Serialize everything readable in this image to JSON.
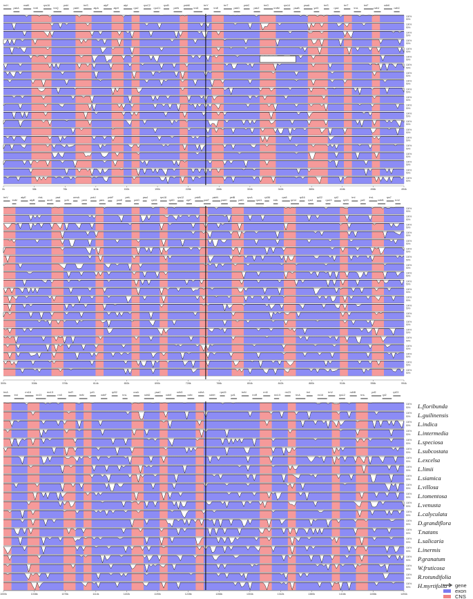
{
  "chart_data": {
    "type": "area",
    "description_free": true,
    "ylim": [
      50,
      100
    ],
    "y_ticks": [
      "100%",
      "50%"
    ],
    "legend": {
      "placement": "bottom-right",
      "items": [
        {
          "label": "gene",
          "color": "#555555",
          "kind": "arrow"
        },
        {
          "label": "exon",
          "color": "#7b7bf0",
          "kind": "swatch"
        },
        {
          "label": "CNS",
          "color": "#f08484",
          "kind": "swatch"
        }
      ]
    },
    "colors": {
      "exon": "#8c8cf5",
      "cns": "#f59a9a",
      "trace": "#111111",
      "fill": "#ffffff",
      "gene_bar": "#8a8a8a"
    },
    "species": [
      "L.floribunda",
      "L.guilinensis",
      "L.indica",
      "L.intermedia",
      "L.speciosa",
      "L.subcostata",
      "L.excelsa",
      "L.limii",
      "L.siamica",
      "L.villosa",
      "L.tomentosa",
      "L.venusta",
      "L.calyculata",
      "D.grandiflora",
      "T.natans",
      "L.salicaria",
      "L.inermis",
      "P.granatum",
      "W.fruticosa",
      "R.rotundifolia",
      "H.myrtifolia"
    ],
    "panels": [
      {
        "x_ticks": [
          "0k",
          "38k",
          "76k",
          "114k",
          "152k",
          "190k",
          "228k",
          "266k",
          "304k",
          "342k",
          "380k",
          "418k",
          "456k",
          "494k"
        ],
        "genes": [
          "trnH",
          "psbA",
          "matK",
          "trnK",
          "rps16",
          "trnQ",
          "psbI",
          "psbK",
          "trnS",
          "atpA",
          "atpF",
          "atpH",
          "atpI",
          "rps2",
          "rpoC2",
          "rpoC1",
          "rpoB",
          "petN",
          "psbM",
          "trnD",
          "trnY",
          "trnE",
          "trnT",
          "psbD",
          "psbC",
          "psbZ",
          "trnG",
          "trnfM",
          "rps14",
          "psaB",
          "psaA",
          "ycf3",
          "trnS",
          "rps4",
          "trnT",
          "trnL",
          "trnF",
          "ndhJ",
          "ndhK",
          "ndhC"
        ],
        "gaps": [
          {
            "track": 5,
            "from": 0.64,
            "to": 0.73
          }
        ],
        "regions": [
          {
            "t": "e",
            "s": 0.0,
            "w": 0.07
          },
          {
            "t": "c",
            "s": 0.07,
            "w": 0.05
          },
          {
            "t": "e",
            "s": 0.12,
            "w": 0.06
          },
          {
            "t": "c",
            "s": 0.18,
            "w": 0.04
          },
          {
            "t": "e",
            "s": 0.22,
            "w": 0.05
          },
          {
            "t": "c",
            "s": 0.27,
            "w": 0.03
          },
          {
            "t": "e",
            "s": 0.3,
            "w": 0.02
          },
          {
            "t": "c",
            "s": 0.32,
            "w": 0.02
          },
          {
            "t": "e",
            "s": 0.34,
            "w": 0.1
          },
          {
            "t": "c",
            "s": 0.44,
            "w": 0.02
          },
          {
            "t": "e",
            "s": 0.46,
            "w": 0.06
          },
          {
            "t": "c",
            "s": 0.52,
            "w": 0.03
          },
          {
            "t": "e",
            "s": 0.55,
            "w": 0.09
          },
          {
            "t": "c",
            "s": 0.64,
            "w": 0.04
          },
          {
            "t": "e",
            "s": 0.68,
            "w": 0.08
          },
          {
            "t": "c",
            "s": 0.76,
            "w": 0.05
          },
          {
            "t": "e",
            "s": 0.81,
            "w": 0.04
          },
          {
            "t": "c",
            "s": 0.85,
            "w": 0.02
          },
          {
            "t": "e",
            "s": 0.87,
            "w": 0.05
          },
          {
            "t": "c",
            "s": 0.92,
            "w": 0.02
          },
          {
            "t": "e",
            "s": 0.94,
            "w": 0.06
          }
        ],
        "divider": 0.505
      },
      {
        "x_ticks": [
          "500k",
          "538k",
          "576k",
          "614k",
          "652k",
          "690k",
          "728k",
          "766k",
          "804k",
          "842k",
          "880k",
          "918k",
          "956k",
          "994k"
        ],
        "genes": [
          "trnV",
          "trnM",
          "atpE",
          "atpB",
          "rbcL",
          "accD",
          "psaI",
          "ycf4",
          "cemA",
          "petA",
          "psbJ",
          "psbL",
          "psbF",
          "psbE",
          "petL",
          "petG",
          "psaJ",
          "rpl33",
          "rps18",
          "rpl20",
          "rps12",
          "clpP",
          "psbB",
          "psbT",
          "psbN",
          "psbH",
          "petB",
          "petD",
          "rpoA",
          "rps11",
          "rpl36",
          "infA",
          "rps8",
          "rpl14",
          "rpl16",
          "rps3",
          "rpl22",
          "rps19",
          "rpl2",
          "rpl23",
          "trnI",
          "ycf2",
          "trnL",
          "ndhB",
          "rps7",
          "trnV"
        ],
        "gaps": [],
        "regions": [
          {
            "t": "c",
            "s": 0.0,
            "w": 0.03
          },
          {
            "t": "e",
            "s": 0.03,
            "w": 0.09
          },
          {
            "t": "c",
            "s": 0.12,
            "w": 0.03
          },
          {
            "t": "e",
            "s": 0.15,
            "w": 0.08
          },
          {
            "t": "c",
            "s": 0.23,
            "w": 0.02
          },
          {
            "t": "e",
            "s": 0.25,
            "w": 0.07
          },
          {
            "t": "c",
            "s": 0.32,
            "w": 0.02
          },
          {
            "t": "e",
            "s": 0.34,
            "w": 0.05
          },
          {
            "t": "c",
            "s": 0.39,
            "w": 0.02
          },
          {
            "t": "e",
            "s": 0.41,
            "w": 0.08
          },
          {
            "t": "c",
            "s": 0.49,
            "w": 0.02
          },
          {
            "t": "e",
            "s": 0.51,
            "w": 0.06
          },
          {
            "t": "c",
            "s": 0.57,
            "w": 0.03
          },
          {
            "t": "e",
            "s": 0.6,
            "w": 0.1
          },
          {
            "t": "c",
            "s": 0.7,
            "w": 0.03
          },
          {
            "t": "e",
            "s": 0.73,
            "w": 0.11
          },
          {
            "t": "c",
            "s": 0.84,
            "w": 0.02
          },
          {
            "t": "e",
            "s": 0.86,
            "w": 0.06
          },
          {
            "t": "c",
            "s": 0.92,
            "w": 0.03
          },
          {
            "t": "e",
            "s": 0.95,
            "w": 0.05
          }
        ],
        "divider": 0.505
      },
      {
        "x_ticks": [
          "1000k",
          "1038k",
          "1076k",
          "1114k",
          "1152k",
          "1190k",
          "1228k",
          "1266k",
          "1304k",
          "1342k",
          "1380k",
          "1418k",
          "1456k",
          "1494k"
        ],
        "genes": [
          "trnA",
          "trnI",
          "rrn16",
          "rrn23",
          "rrn4.5",
          "rrn5",
          "trnR",
          "trnN",
          "ycf1",
          "ndhF",
          "rpl32",
          "trnL",
          "ccsA",
          "ndhD",
          "psaC",
          "ndhE",
          "ndhG",
          "ndhI",
          "ndhA",
          "ndhH",
          "rps15",
          "ycf1",
          "trnN",
          "trnR",
          "rrn5",
          "rrn4.5",
          "rrn23",
          "trnA",
          "trnI",
          "rrn16",
          "trnV",
          "rps12",
          "ndhB",
          "trnL",
          "ycf2",
          "rpl2",
          "rpl23"
        ],
        "gaps": [],
        "regions": [
          {
            "t": "c",
            "s": 0.0,
            "w": 0.02
          },
          {
            "t": "e",
            "s": 0.02,
            "w": 0.04
          },
          {
            "t": "c",
            "s": 0.06,
            "w": 0.03
          },
          {
            "t": "e",
            "s": 0.09,
            "w": 0.06
          },
          {
            "t": "c",
            "s": 0.15,
            "w": 0.03
          },
          {
            "t": "e",
            "s": 0.18,
            "w": 0.02
          },
          {
            "t": "c",
            "s": 0.2,
            "w": 0.02
          },
          {
            "t": "e",
            "s": 0.22,
            "w": 0.1
          },
          {
            "t": "c",
            "s": 0.32,
            "w": 0.03
          },
          {
            "t": "e",
            "s": 0.35,
            "w": 0.04
          },
          {
            "t": "c",
            "s": 0.39,
            "w": 0.02
          },
          {
            "t": "e",
            "s": 0.41,
            "w": 0.07
          },
          {
            "t": "c",
            "s": 0.48,
            "w": 0.02
          },
          {
            "t": "e",
            "s": 0.5,
            "w": 0.14
          },
          {
            "t": "c",
            "s": 0.64,
            "w": 0.03
          },
          {
            "t": "e",
            "s": 0.67,
            "w": 0.04
          },
          {
            "t": "c",
            "s": 0.71,
            "w": 0.02
          },
          {
            "t": "e",
            "s": 0.73,
            "w": 0.09
          },
          {
            "t": "c",
            "s": 0.82,
            "w": 0.02
          },
          {
            "t": "e",
            "s": 0.84,
            "w": 0.04
          },
          {
            "t": "c",
            "s": 0.88,
            "w": 0.03
          },
          {
            "t": "e",
            "s": 0.91,
            "w": 0.09
          }
        ],
        "divider": 0.505
      }
    ]
  }
}
